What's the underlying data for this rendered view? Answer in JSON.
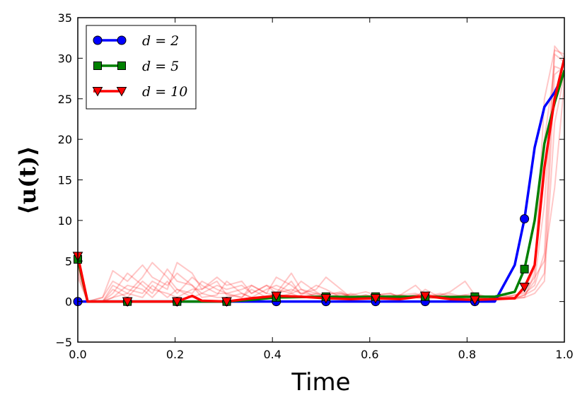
{
  "chart_data": {
    "type": "line",
    "xlabel": "Time",
    "ylabel": "⟨u(t)⟩",
    "xlim": [
      0.0,
      1.0
    ],
    "ylim": [
      -5,
      35
    ],
    "xticks": [
      0.0,
      0.2,
      0.4,
      0.6,
      0.8,
      1.0
    ],
    "xtick_labels": [
      "0.0",
      "0.2",
      "0.4",
      "0.6",
      "0.8",
      "1.0"
    ],
    "yticks": [
      -5,
      0,
      5,
      10,
      15,
      20,
      25,
      30,
      35
    ],
    "ytick_labels": [
      "−5",
      "0",
      "5",
      "10",
      "15",
      "20",
      "25",
      "30",
      "35"
    ],
    "grid": false,
    "legend_position": "top-left",
    "series": [
      {
        "name": "d = 2",
        "color": "#0000ff",
        "marker": "circle",
        "x": [
          0.0,
          0.02,
          0.051,
          0.102,
          0.153,
          0.204,
          0.255,
          0.306,
          0.357,
          0.408,
          0.459,
          0.51,
          0.561,
          0.612,
          0.663,
          0.714,
          0.765,
          0.816,
          0.857,
          0.898,
          0.918,
          0.939,
          0.959,
          0.98,
          1.0
        ],
        "y": [
          0,
          0,
          0,
          0,
          0,
          0,
          0,
          0,
          0,
          0,
          0,
          0,
          0,
          0,
          0,
          0,
          0,
          0,
          0,
          4.5,
          10.2,
          19,
          24,
          25.8,
          28.2
        ],
        "marker_x": [
          0.0,
          0.102,
          0.204,
          0.306,
          0.408,
          0.51,
          0.612,
          0.714,
          0.816,
          0.918
        ],
        "marker_y": [
          0,
          0,
          0,
          0,
          0,
          0,
          0,
          0,
          0,
          10.2
        ]
      },
      {
        "name": "d = 5",
        "color": "#008000",
        "marker": "square",
        "x": [
          0.0,
          0.02,
          0.051,
          0.102,
          0.153,
          0.204,
          0.255,
          0.306,
          0.357,
          0.408,
          0.459,
          0.51,
          0.561,
          0.612,
          0.663,
          0.714,
          0.765,
          0.816,
          0.857,
          0.898,
          0.918,
          0.939,
          0.959,
          0.98,
          1.0
        ],
        "y": [
          5.2,
          0,
          0,
          0,
          0,
          0,
          0,
          0,
          0.2,
          0.5,
          0.55,
          0.6,
          0.55,
          0.6,
          0.6,
          0.6,
          0.55,
          0.6,
          0.6,
          1.2,
          4.0,
          10,
          19.5,
          24.5,
          28.5
        ],
        "marker_x": [
          0.0,
          0.102,
          0.204,
          0.306,
          0.408,
          0.51,
          0.612,
          0.714,
          0.816,
          0.918
        ],
        "marker_y": [
          5.2,
          0,
          0,
          0,
          0.5,
          0.6,
          0.6,
          0.6,
          0.6,
          4.0
        ]
      },
      {
        "name": "d = 10",
        "color": "#ff0000",
        "marker": "triangle-down",
        "x": [
          0.0,
          0.02,
          0.051,
          0.102,
          0.153,
          0.204,
          0.235,
          0.255,
          0.306,
          0.357,
          0.408,
          0.459,
          0.51,
          0.561,
          0.612,
          0.663,
          0.714,
          0.765,
          0.816,
          0.857,
          0.898,
          0.918,
          0.939,
          0.959,
          0.98,
          1.0
        ],
        "y": [
          5.6,
          0,
          0,
          0,
          0,
          0,
          0.7,
          0.1,
          0,
          0.4,
          0.7,
          0.6,
          0.4,
          0.3,
          0.4,
          0.3,
          0.7,
          0.3,
          0.2,
          0.3,
          0.4,
          1.8,
          4.5,
          16.5,
          25,
          30
        ],
        "marker_x": [
          0.0,
          0.102,
          0.204,
          0.306,
          0.408,
          0.51,
          0.612,
          0.714,
          0.816,
          0.918
        ],
        "marker_y": [
          5.6,
          0,
          0,
          0,
          0.7,
          0.4,
          0.4,
          0.7,
          0.2,
          1.8
        ]
      }
    ],
    "background_traces": {
      "color": "#ff0000",
      "opacity": 0.22,
      "x": [
        0.0,
        0.02,
        0.051,
        0.072,
        0.102,
        0.133,
        0.153,
        0.184,
        0.204,
        0.235,
        0.255,
        0.286,
        0.306,
        0.337,
        0.357,
        0.388,
        0.408,
        0.439,
        0.459,
        0.49,
        0.51,
        0.541,
        0.561,
        0.592,
        0.612,
        0.643,
        0.663,
        0.694,
        0.714,
        0.745,
        0.765,
        0.796,
        0.816,
        0.847,
        0.867,
        0.898,
        0.918,
        0.939,
        0.959,
        0.98,
        1.0
      ],
      "traces": [
        [
          5.0,
          0,
          0.5,
          3.8,
          2.5,
          4.5,
          3.0,
          2.0,
          3.5,
          2.0,
          1.0,
          2.0,
          1.5,
          2.0,
          1.0,
          2.0,
          1.5,
          1.0,
          1.5,
          1.0,
          0.8,
          1.2,
          0.5,
          0.8,
          0.5,
          0.6,
          0.5,
          0.8,
          0.6,
          1.0,
          0.6,
          0.8,
          0.5,
          0.5,
          0.5,
          0.8,
          1.0,
          2.0,
          6.0,
          31.5,
          30.0
        ],
        [
          4.0,
          0,
          0,
          2.0,
          1.0,
          3.0,
          4.8,
          3.0,
          1.5,
          1.0,
          2.5,
          1.5,
          1.0,
          1.5,
          2.0,
          1.0,
          3.0,
          2.0,
          1.0,
          0.8,
          0.5,
          1.0,
          0.5,
          0.5,
          1.0,
          0.5,
          0.8,
          2.0,
          0.8,
          0.5,
          0.3,
          0.5,
          0.5,
          0.3,
          0.5,
          0.5,
          1.5,
          4.0,
          20.0,
          29.0,
          28.5
        ],
        [
          6.0,
          0,
          0,
          1.0,
          3.5,
          2.0,
          1.0,
          4.0,
          2.5,
          2.0,
          0.5,
          0.8,
          2.5,
          1.0,
          0.5,
          1.5,
          2.0,
          1.2,
          2.5,
          1.2,
          0.5,
          0.8,
          0.8,
          1.2,
          0.8,
          1.0,
          0.5,
          0.5,
          1.5,
          0.5,
          0.8,
          0.3,
          0.3,
          0.5,
          0.3,
          0.5,
          0.8,
          2.5,
          12.0,
          30.5,
          29.5
        ],
        [
          3.5,
          0,
          0.5,
          2.5,
          1.5,
          1.0,
          2.5,
          1.5,
          4.8,
          3.5,
          1.5,
          2.5,
          0.8,
          0.5,
          2.0,
          1.0,
          0.8,
          2.5,
          0.8,
          2.0,
          1.5,
          0.5,
          1.0,
          0.5,
          0.5,
          0.8,
          0.8,
          1.0,
          0.5,
          0.8,
          1.0,
          0.5,
          0.8,
          0.5,
          0.8,
          0.5,
          0.5,
          3.5,
          25.0,
          31.0,
          30.5
        ],
        [
          4.5,
          0,
          0,
          0.5,
          2.0,
          1.5,
          0.5,
          2.5,
          1.0,
          3.0,
          2.0,
          1.0,
          1.0,
          0.5,
          1.5,
          0.5,
          1.0,
          1.5,
          1.0,
          1.5,
          3.0,
          1.5,
          0.5,
          0.8,
          0.5,
          0.5,
          0.8,
          0.5,
          0.5,
          0.8,
          1.2,
          2.5,
          0.8,
          0.5,
          0.5,
          0.3,
          0.8,
          1.5,
          3.5,
          28.0,
          29.0
        ],
        [
          5.5,
          0,
          0,
          1.5,
          0.5,
          2.5,
          1.5,
          1.0,
          0.5,
          1.5,
          1.5,
          3.0,
          2.0,
          2.5,
          1.0,
          2.0,
          1.0,
          3.5,
          1.5,
          0.5,
          1.0,
          1.0,
          0.8,
          0.5,
          0.8,
          1.0,
          0.5,
          0.8,
          1.0,
          0.5,
          0.5,
          0.8,
          1.0,
          0.5,
          0.3,
          0.8,
          1.2,
          3.0,
          5.0,
          14.0,
          27.0
        ],
        [
          3.0,
          0,
          0,
          0.5,
          1.0,
          0.5,
          2.0,
          0.5,
          1.5,
          0.5,
          1.0,
          0.5,
          0.5,
          1.0,
          0.5,
          0.5,
          0.5,
          1.0,
          0.5,
          1.0,
          0.5,
          0.5,
          0.3,
          0.5,
          0.5,
          0.3,
          0.5,
          0.5,
          0.3,
          0.5,
          0.5,
          0.3,
          0.5,
          0.3,
          0.5,
          0.3,
          0.5,
          1.0,
          2.5,
          22.0,
          28.0
        ]
      ]
    }
  }
}
